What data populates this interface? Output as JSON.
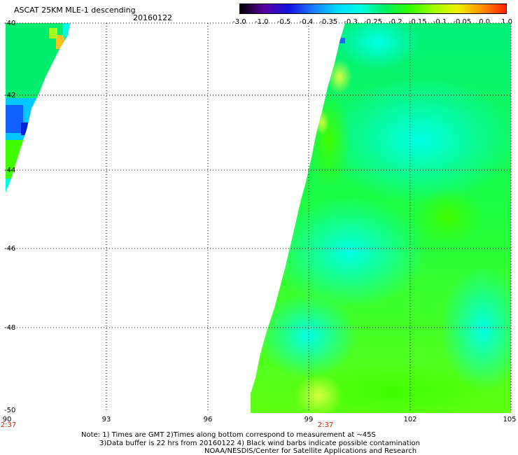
{
  "header": {
    "title": "ASCAT 25KM MLE-1 descending",
    "date": "20160122"
  },
  "colorbar": {
    "ticks": [
      "-3.0",
      "-1.0",
      "-0.5",
      "-0.4",
      "-0.35",
      "-0.3",
      "-0.25",
      "-0.2",
      "-0.15",
      "-0.1",
      "-0.05",
      "0.0",
      "1.0"
    ],
    "colors": [
      "#000000",
      "#5a00a0",
      "#1010e0",
      "#1a7aff",
      "#00d8ff",
      "#00ffe0",
      "#00f060",
      "#30ff00",
      "#a0ff00",
      "#f0f000",
      "#ff9000",
      "#ff2000"
    ]
  },
  "map": {
    "lat_labels": [
      "-40",
      "-42",
      "-44",
      "-46",
      "-48",
      "-50"
    ],
    "lon_labels": [
      "90",
      "93",
      "96",
      "99",
      "102",
      "105"
    ],
    "time_labels": [
      {
        "lon": "90",
        "text": "2:37"
      },
      {
        "lon": "99.5",
        "text": "2:37"
      }
    ]
  },
  "notes": [
    "Note: 1) Times are GMT 2)Times along bottom correspond to measurement at ~45S",
    "3)Data buffer is 22 hrs from 20160122 4) Black wind barbs indicate possible contamination",
    "NOAA/NESDIS/Center for Satellite Applications and Research"
  ]
}
